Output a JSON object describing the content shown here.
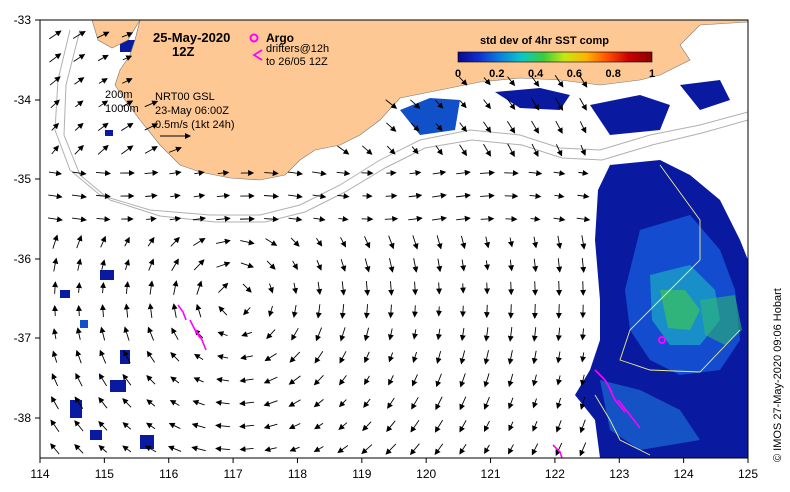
{
  "title": {
    "date": "25-May-2020",
    "time": "12Z"
  },
  "legend": {
    "argo_label": "Argo",
    "drifters_line1": "drifters@12h",
    "drifters_line2": "to 26/05 12Z",
    "argo_color": "#ff00ff",
    "drifter_color": "#ff00ff"
  },
  "contours": {
    "label_200": "200m",
    "label_1000": "1000m",
    "color": "#b0b0b0"
  },
  "product": {
    "name": "NRT00 GSL",
    "date": "23-May 06:00Z",
    "scale": "0.5m/s (1kt 24h)"
  },
  "colorbar": {
    "title": "std dev of 4hr SST comp",
    "ticks": [
      "0",
      "0.2",
      "0.4",
      "0.6",
      "0.8",
      "1"
    ],
    "stops": [
      "#0a0a8c",
      "#1030d0",
      "#0a82e0",
      "#0ac8c8",
      "#3ccc3c",
      "#c8e614",
      "#ffb400",
      "#ff5000",
      "#c80000",
      "#8c0000"
    ]
  },
  "credit": "© IMOS 27-May-2020 09:06 Hobart",
  "colors": {
    "land": "#fdc893",
    "ocean": "#ffffff",
    "frame": "#000000"
  },
  "axes": {
    "x_ticks": [
      "114",
      "115",
      "116",
      "117",
      "118",
      "119",
      "120",
      "121",
      "122",
      "123",
      "124",
      "125"
    ],
    "y_ticks": [
      "-33",
      "-34",
      "-35",
      "-36",
      "-37",
      "-38"
    ]
  }
}
